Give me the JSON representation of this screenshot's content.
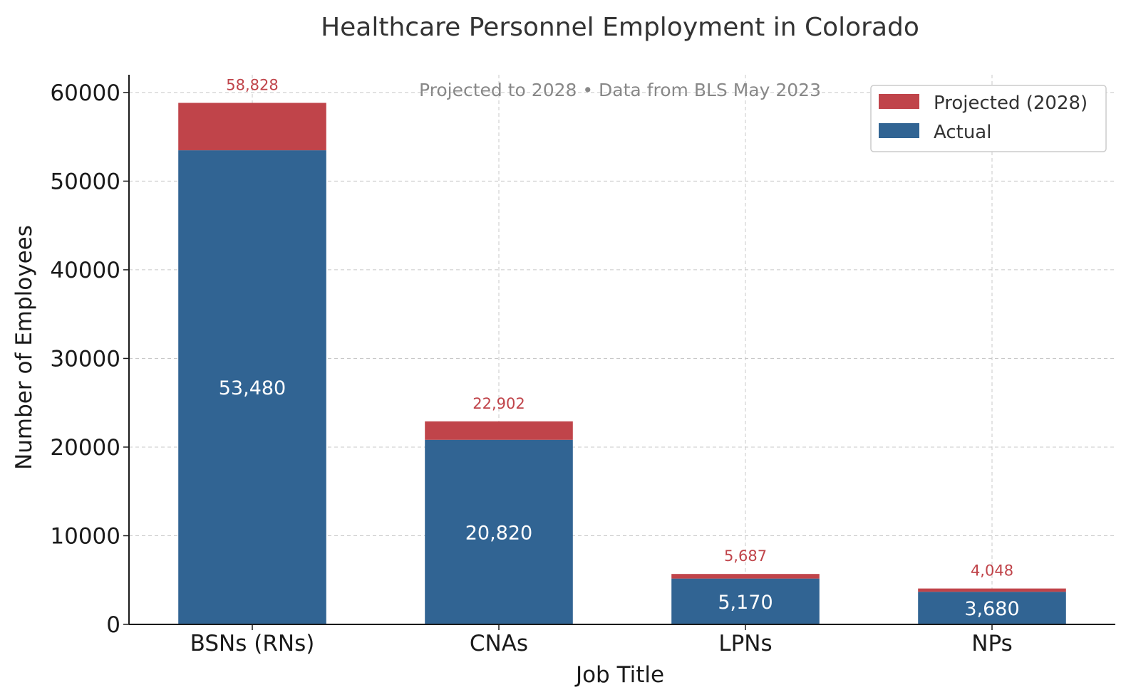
{
  "chart_data": {
    "type": "bar",
    "stacked": true,
    "title": "Healthcare Personnel Employment in Colorado",
    "subtitle": "Projected to 2028 • Data from BLS May 2023",
    "xlabel": "Job Title",
    "ylabel": "Number of Employees",
    "ylim": [
      0,
      62000
    ],
    "yticks": [
      0,
      10000,
      20000,
      30000,
      40000,
      50000,
      60000
    ],
    "ytick_labels": [
      "0",
      "10000",
      "20000",
      "30000",
      "40000",
      "50000",
      "60000"
    ],
    "grid": true,
    "legend_position": "top-right",
    "categories": [
      "BSNs (RNs)",
      "CNAs",
      "LPNs",
      "NPs"
    ],
    "series": [
      {
        "name": "Actual",
        "color": "#316493",
        "values": [
          53480,
          20820,
          5170,
          3680
        ],
        "labels": [
          "53,480",
          "20,820",
          "5,170",
          "3,680"
        ]
      },
      {
        "name": "Projected (2028)",
        "color": "#c0444a",
        "totals": [
          58828,
          22902,
          5687,
          4048
        ],
        "labels": [
          "58,828",
          "22,902",
          "5,687",
          "4,048"
        ]
      }
    ],
    "legend_order": [
      "Projected (2028)",
      "Actual"
    ]
  }
}
